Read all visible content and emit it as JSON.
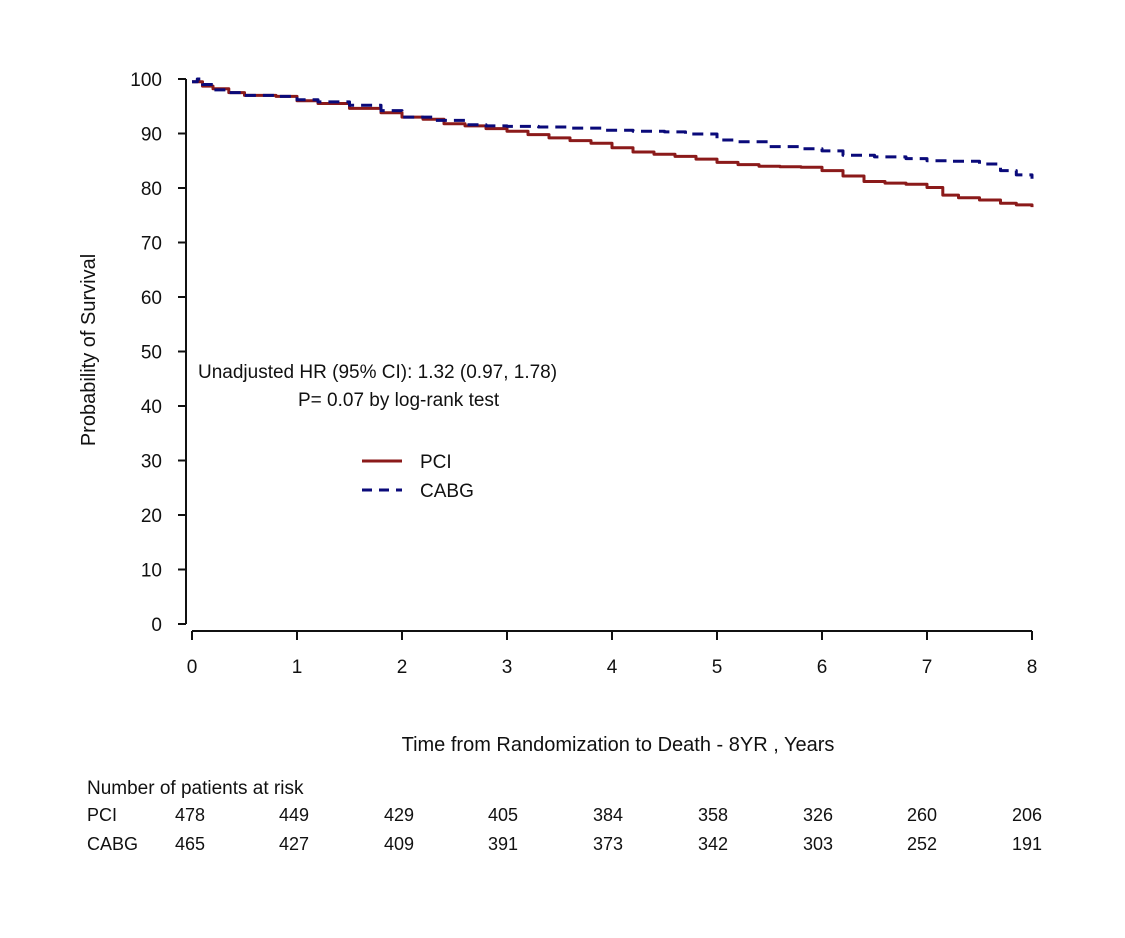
{
  "chart_data": {
    "type": "line",
    "title": "",
    "xlabel": "Time from Randomization to  Death - 8YR , Years",
    "ylabel": "Probability of Survival",
    "xlim": [
      0,
      8
    ],
    "ylim": [
      0,
      100
    ],
    "x_ticks": [
      "0",
      "1",
      "2",
      "3",
      "4",
      "5",
      "6",
      "7",
      "8"
    ],
    "y_ticks": [
      "0",
      "10",
      "20",
      "30",
      "40",
      "50",
      "60",
      "70",
      "80",
      "90",
      "100"
    ],
    "grid": false,
    "legend_position": "center-left",
    "annotations": [
      "Unadjusted HR (95% CI): 1.32 (0.97, 1.78)",
      "P= 0.07  by log-rank test"
    ],
    "series": [
      {
        "name": "PCI",
        "color": "#8b1a1a",
        "style": "solid",
        "x": [
          0,
          0.1,
          0.2,
          0.35,
          0.5,
          0.8,
          1.0,
          1.2,
          1.5,
          1.8,
          2.0,
          2.2,
          2.4,
          2.6,
          2.8,
          3.0,
          3.2,
          3.4,
          3.6,
          3.8,
          4.0,
          4.2,
          4.4,
          4.6,
          4.8,
          5.0,
          5.2,
          5.4,
          5.6,
          5.8,
          6.0,
          6.2,
          6.4,
          6.6,
          6.8,
          7.0,
          7.15,
          7.3,
          7.5,
          7.7,
          7.85,
          8.0
        ],
        "y": [
          99.5,
          98.7,
          98.2,
          97.5,
          97.0,
          96.8,
          96.0,
          95.5,
          94.6,
          93.8,
          93.0,
          92.6,
          91.8,
          91.4,
          90.9,
          90.4,
          89.8,
          89.2,
          88.7,
          88.2,
          87.4,
          86.6,
          86.2,
          85.8,
          85.3,
          84.7,
          84.3,
          84.0,
          83.9,
          83.8,
          83.2,
          82.2,
          81.2,
          80.9,
          80.7,
          80.1,
          78.7,
          78.2,
          77.8,
          77.2,
          76.9,
          76.5
        ]
      },
      {
        "name": "CABG",
        "color": "#0a0a7a",
        "style": "dashed",
        "x": [
          0,
          0.05,
          0.1,
          0.2,
          0.35,
          0.5,
          0.8,
          1.0,
          1.2,
          1.5,
          1.8,
          2.0,
          2.3,
          2.6,
          2.8,
          3.0,
          3.3,
          3.6,
          3.9,
          4.2,
          4.5,
          4.7,
          5.0,
          5.2,
          5.5,
          5.8,
          6.0,
          6.2,
          6.5,
          6.8,
          7.0,
          7.2,
          7.5,
          7.7,
          7.85,
          8.0
        ],
        "y": [
          99.5,
          100,
          99.0,
          98.0,
          97.5,
          97.0,
          96.8,
          96.2,
          95.8,
          95.2,
          94.2,
          93.0,
          92.4,
          91.6,
          91.4,
          91.3,
          91.2,
          91.0,
          90.6,
          90.4,
          90.3,
          89.9,
          88.8,
          88.5,
          87.6,
          87.2,
          86.8,
          86.0,
          85.7,
          85.4,
          85.0,
          84.9,
          84.4,
          83.2,
          82.4,
          81.7
        ]
      }
    ],
    "risk_table": {
      "title": "Number of patients at risk",
      "times": [
        0,
        1,
        2,
        3,
        4,
        5,
        6,
        7,
        8
      ],
      "rows": [
        {
          "label": "PCI",
          "values": [
            "478",
            "449",
            "429",
            "405",
            "384",
            "358",
            "326",
            "260",
            "206"
          ]
        },
        {
          "label": "CABG",
          "values": [
            "465",
            "427",
            "409",
            "391",
            "373",
            "342",
            "303",
            "252",
            "191"
          ]
        }
      ]
    }
  }
}
